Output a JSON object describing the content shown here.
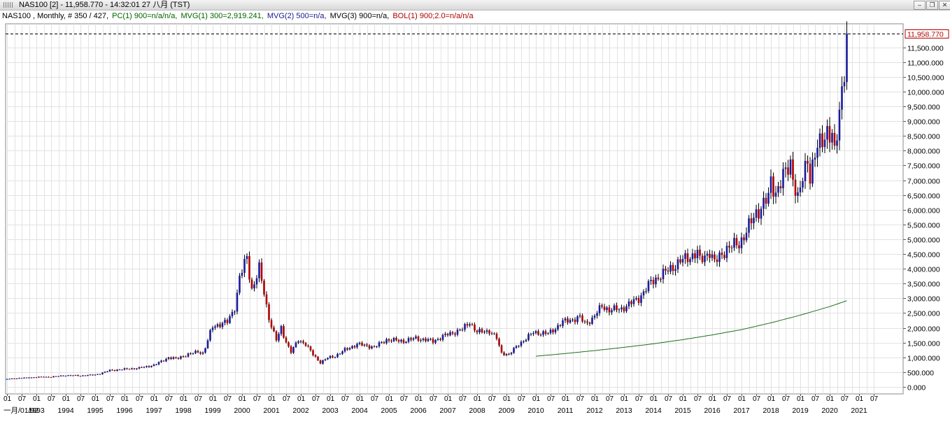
{
  "window": {
    "title": "NAS100 [2] - 11,958.770 - 14:32:01  27 八月 (TST)",
    "buttons": [
      "–",
      "❐",
      "✕"
    ]
  },
  "legend": [
    {
      "text": "NAS100 , Monthly, # 350 / 427,",
      "color": "#000000"
    },
    {
      "text": "PC(1) 900=n/a/n/a,",
      "color": "#006400"
    },
    {
      "text": "MVG(1) 300=2,919.241,",
      "color": "#006400"
    },
    {
      "text": "MVG(2) 500=n/a,",
      "color": "#1a1a8c"
    },
    {
      "text": "MVG(3) 900=n/a,",
      "color": "#000000"
    },
    {
      "text": "BOL(1) 900;2.0=n/a/n/a",
      "color": "#b00000"
    }
  ],
  "chart_data": {
    "type": "candlestick",
    "symbol": "NAS100",
    "period": "Monthly",
    "last_price": 11958.77,
    "last_price_label": "11,958.770",
    "ylim": [
      0,
      12200
    ],
    "ytick_values": [
      0,
      500,
      1000,
      1500,
      2000,
      2500,
      3000,
      3500,
      4000,
      4500,
      5000,
      5500,
      6000,
      6500,
      7000,
      7500,
      8000,
      8500,
      9000,
      9500,
      10000,
      10500,
      11000,
      11500
    ],
    "ytick_labels": [
      "0.000",
      "500.000",
      "1,000.000",
      "1,500.000",
      "2,000.000",
      "2,500.000",
      "3,000.000",
      "3,500.000",
      "4,000.000",
      "4,500.000",
      "5,000.000",
      "5,500.000",
      "6,000.000",
      "6,500.000",
      "7,000.000",
      "7,500.000",
      "8,000.000",
      "8,500.000",
      "9,000.000",
      "9,500.000",
      "10,000.000",
      "10,500.000",
      "11,000.000",
      "11,500.000"
    ],
    "x_start": "1992-01",
    "x_end": "2021-09",
    "month_ticks": [
      "01",
      "07"
    ],
    "first_year_label": "一月/01/92",
    "year_labels": [
      "1993",
      "1994",
      "1995",
      "1996",
      "1997",
      "1998",
      "1999",
      "2000",
      "2001",
      "2002",
      "2003",
      "2004",
      "2005",
      "2006",
      "2007",
      "2008",
      "2009",
      "2010",
      "2011",
      "2012",
      "2013",
      "2014",
      "2015",
      "2016",
      "2017",
      "2018",
      "2019",
      "2020",
      "2021"
    ],
    "up_color": "#1a1a9c",
    "down_color": "#b00000",
    "ma_color": "#1f6e1f",
    "grid": true,
    "close_series": [
      [
        "1992-01",
        270
      ],
      [
        "1992-07",
        300
      ],
      [
        "1993-01",
        330
      ],
      [
        "1993-07",
        340
      ],
      [
        "1994-01",
        390
      ],
      [
        "1994-07",
        380
      ],
      [
        "1995-01",
        410
      ],
      [
        "1995-07",
        560
      ],
      [
        "1996-01",
        600
      ],
      [
        "1996-07",
        640
      ],
      [
        "1997-01",
        740
      ],
      [
        "1997-07",
        1000
      ],
      [
        "1997-10",
        950
      ],
      [
        "1998-01",
        1050
      ],
      [
        "1998-07",
        1200
      ],
      [
        "1998-09",
        1140
      ],
      [
        "1998-12",
        1830
      ],
      [
        "1999-01",
        2050
      ],
      [
        "1999-07",
        2200
      ],
      [
        "1999-10",
        2700
      ],
      [
        "1999-12",
        3700
      ],
      [
        "2000-03",
        4400
      ],
      [
        "2000-05",
        3300
      ],
      [
        "2000-08",
        4000
      ],
      [
        "2000-10",
        3200
      ],
      [
        "2000-12",
        2350
      ],
      [
        "2001-03",
        1580
      ],
      [
        "2001-05",
        2000
      ],
      [
        "2001-09",
        1180
      ],
      [
        "2001-12",
        1600
      ],
      [
        "2002-03",
        1450
      ],
      [
        "2002-07",
        1000
      ],
      [
        "2002-09",
        830
      ],
      [
        "2002-12",
        980
      ],
      [
        "2003-03",
        1050
      ],
      [
        "2003-07",
        1250
      ],
      [
        "2003-12",
        1450
      ],
      [
        "2004-07",
        1350
      ],
      [
        "2004-12",
        1600
      ],
      [
        "2005-07",
        1550
      ],
      [
        "2005-12",
        1650
      ],
      [
        "2006-07",
        1550
      ],
      [
        "2006-12",
        1750
      ],
      [
        "2007-07",
        1950
      ],
      [
        "2007-10",
        2200
      ],
      [
        "2008-01",
        1850
      ],
      [
        "2008-06",
        1900
      ],
      [
        "2008-09",
        1650
      ],
      [
        "2008-11",
        1150
      ],
      [
        "2009-02",
        1100
      ],
      [
        "2009-06",
        1450
      ],
      [
        "2009-12",
        1850
      ],
      [
        "2010-06",
        1800
      ],
      [
        "2010-12",
        2200
      ],
      [
        "2011-07",
        2350
      ],
      [
        "2011-09",
        2150
      ],
      [
        "2011-12",
        2300
      ],
      [
        "2012-04",
        2750
      ],
      [
        "2012-07",
        2600
      ],
      [
        "2012-12",
        2650
      ],
      [
        "2013-07",
        3000
      ],
      [
        "2013-12",
        3550
      ],
      [
        "2014-07",
        3950
      ],
      [
        "2014-12",
        4250
      ],
      [
        "2015-07",
        4550
      ],
      [
        "2015-08",
        4250
      ],
      [
        "2015-12",
        4600
      ],
      [
        "2016-02",
        4200
      ],
      [
        "2016-07",
        4700
      ],
      [
        "2016-12",
        4850
      ],
      [
        "2017-07",
        5900
      ],
      [
        "2017-12",
        6400
      ],
      [
        "2018-01",
        6950
      ],
      [
        "2018-03",
        6600
      ],
      [
        "2018-09",
        7600
      ],
      [
        "2018-12",
        6330
      ],
      [
        "2019-04",
        7800
      ],
      [
        "2019-05",
        7150
      ],
      [
        "2019-07",
        7850
      ],
      [
        "2019-12",
        8730
      ],
      [
        "2020-02",
        8460
      ],
      [
        "2020-03",
        7810
      ],
      [
        "2020-06",
        10160
      ],
      [
        "2020-07",
        10900
      ],
      [
        "2020-08",
        11958.77
      ]
    ],
    "ma_series": [
      [
        "2010-01",
        1040
      ],
      [
        "2011-01",
        1130
      ],
      [
        "2012-01",
        1230
      ],
      [
        "2013-01",
        1340
      ],
      [
        "2014-01",
        1460
      ],
      [
        "2015-01",
        1600
      ],
      [
        "2016-01",
        1760
      ],
      [
        "2017-01",
        1940
      ],
      [
        "2018-01",
        2170
      ],
      [
        "2019-01",
        2430
      ],
      [
        "2020-01",
        2720
      ],
      [
        "2020-08",
        2919.241
      ]
    ]
  }
}
